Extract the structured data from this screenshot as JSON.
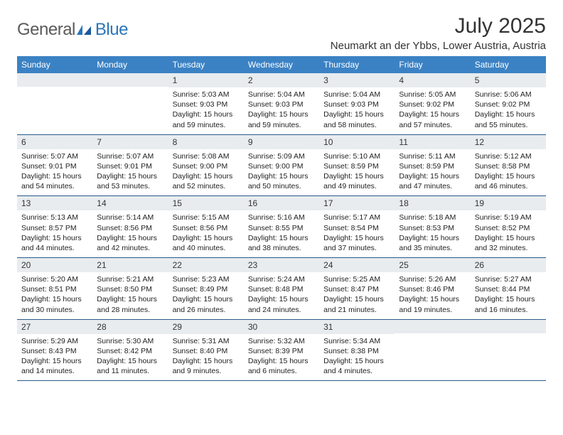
{
  "brand": {
    "text1": "General",
    "text2": "Blue"
  },
  "title": "July 2025",
  "location": "Neumarkt an der Ybbs, Lower Austria, Austria",
  "colors": {
    "header_bg": "#3b82c4",
    "header_text": "#ffffff",
    "daynum_bg": "#e8ecef",
    "week_border": "#2a5a8a",
    "logo_gray": "#5a5a5a",
    "logo_blue": "#2a76b8"
  },
  "typography": {
    "title_fontsize": 30,
    "location_fontsize": 15,
    "dayheader_fontsize": 12,
    "daynum_fontsize": 12,
    "body_fontsize": 10.5
  },
  "day_names": [
    "Sunday",
    "Monday",
    "Tuesday",
    "Wednesday",
    "Thursday",
    "Friday",
    "Saturday"
  ],
  "weeks": [
    [
      {
        "n": "",
        "sunrise": "",
        "sunset": "",
        "daylight": ""
      },
      {
        "n": "",
        "sunrise": "",
        "sunset": "",
        "daylight": ""
      },
      {
        "n": "1",
        "sunrise": "Sunrise: 5:03 AM",
        "sunset": "Sunset: 9:03 PM",
        "daylight": "Daylight: 15 hours and 59 minutes."
      },
      {
        "n": "2",
        "sunrise": "Sunrise: 5:04 AM",
        "sunset": "Sunset: 9:03 PM",
        "daylight": "Daylight: 15 hours and 59 minutes."
      },
      {
        "n": "3",
        "sunrise": "Sunrise: 5:04 AM",
        "sunset": "Sunset: 9:03 PM",
        "daylight": "Daylight: 15 hours and 58 minutes."
      },
      {
        "n": "4",
        "sunrise": "Sunrise: 5:05 AM",
        "sunset": "Sunset: 9:02 PM",
        "daylight": "Daylight: 15 hours and 57 minutes."
      },
      {
        "n": "5",
        "sunrise": "Sunrise: 5:06 AM",
        "sunset": "Sunset: 9:02 PM",
        "daylight": "Daylight: 15 hours and 55 minutes."
      }
    ],
    [
      {
        "n": "6",
        "sunrise": "Sunrise: 5:07 AM",
        "sunset": "Sunset: 9:01 PM",
        "daylight": "Daylight: 15 hours and 54 minutes."
      },
      {
        "n": "7",
        "sunrise": "Sunrise: 5:07 AM",
        "sunset": "Sunset: 9:01 PM",
        "daylight": "Daylight: 15 hours and 53 minutes."
      },
      {
        "n": "8",
        "sunrise": "Sunrise: 5:08 AM",
        "sunset": "Sunset: 9:00 PM",
        "daylight": "Daylight: 15 hours and 52 minutes."
      },
      {
        "n": "9",
        "sunrise": "Sunrise: 5:09 AM",
        "sunset": "Sunset: 9:00 PM",
        "daylight": "Daylight: 15 hours and 50 minutes."
      },
      {
        "n": "10",
        "sunrise": "Sunrise: 5:10 AM",
        "sunset": "Sunset: 8:59 PM",
        "daylight": "Daylight: 15 hours and 49 minutes."
      },
      {
        "n": "11",
        "sunrise": "Sunrise: 5:11 AM",
        "sunset": "Sunset: 8:59 PM",
        "daylight": "Daylight: 15 hours and 47 minutes."
      },
      {
        "n": "12",
        "sunrise": "Sunrise: 5:12 AM",
        "sunset": "Sunset: 8:58 PM",
        "daylight": "Daylight: 15 hours and 46 minutes."
      }
    ],
    [
      {
        "n": "13",
        "sunrise": "Sunrise: 5:13 AM",
        "sunset": "Sunset: 8:57 PM",
        "daylight": "Daylight: 15 hours and 44 minutes."
      },
      {
        "n": "14",
        "sunrise": "Sunrise: 5:14 AM",
        "sunset": "Sunset: 8:56 PM",
        "daylight": "Daylight: 15 hours and 42 minutes."
      },
      {
        "n": "15",
        "sunrise": "Sunrise: 5:15 AM",
        "sunset": "Sunset: 8:56 PM",
        "daylight": "Daylight: 15 hours and 40 minutes."
      },
      {
        "n": "16",
        "sunrise": "Sunrise: 5:16 AM",
        "sunset": "Sunset: 8:55 PM",
        "daylight": "Daylight: 15 hours and 38 minutes."
      },
      {
        "n": "17",
        "sunrise": "Sunrise: 5:17 AM",
        "sunset": "Sunset: 8:54 PM",
        "daylight": "Daylight: 15 hours and 37 minutes."
      },
      {
        "n": "18",
        "sunrise": "Sunrise: 5:18 AM",
        "sunset": "Sunset: 8:53 PM",
        "daylight": "Daylight: 15 hours and 35 minutes."
      },
      {
        "n": "19",
        "sunrise": "Sunrise: 5:19 AM",
        "sunset": "Sunset: 8:52 PM",
        "daylight": "Daylight: 15 hours and 32 minutes."
      }
    ],
    [
      {
        "n": "20",
        "sunrise": "Sunrise: 5:20 AM",
        "sunset": "Sunset: 8:51 PM",
        "daylight": "Daylight: 15 hours and 30 minutes."
      },
      {
        "n": "21",
        "sunrise": "Sunrise: 5:21 AM",
        "sunset": "Sunset: 8:50 PM",
        "daylight": "Daylight: 15 hours and 28 minutes."
      },
      {
        "n": "22",
        "sunrise": "Sunrise: 5:23 AM",
        "sunset": "Sunset: 8:49 PM",
        "daylight": "Daylight: 15 hours and 26 minutes."
      },
      {
        "n": "23",
        "sunrise": "Sunrise: 5:24 AM",
        "sunset": "Sunset: 8:48 PM",
        "daylight": "Daylight: 15 hours and 24 minutes."
      },
      {
        "n": "24",
        "sunrise": "Sunrise: 5:25 AM",
        "sunset": "Sunset: 8:47 PM",
        "daylight": "Daylight: 15 hours and 21 minutes."
      },
      {
        "n": "25",
        "sunrise": "Sunrise: 5:26 AM",
        "sunset": "Sunset: 8:46 PM",
        "daylight": "Daylight: 15 hours and 19 minutes."
      },
      {
        "n": "26",
        "sunrise": "Sunrise: 5:27 AM",
        "sunset": "Sunset: 8:44 PM",
        "daylight": "Daylight: 15 hours and 16 minutes."
      }
    ],
    [
      {
        "n": "27",
        "sunrise": "Sunrise: 5:29 AM",
        "sunset": "Sunset: 8:43 PM",
        "daylight": "Daylight: 15 hours and 14 minutes."
      },
      {
        "n": "28",
        "sunrise": "Sunrise: 5:30 AM",
        "sunset": "Sunset: 8:42 PM",
        "daylight": "Daylight: 15 hours and 11 minutes."
      },
      {
        "n": "29",
        "sunrise": "Sunrise: 5:31 AM",
        "sunset": "Sunset: 8:40 PM",
        "daylight": "Daylight: 15 hours and 9 minutes."
      },
      {
        "n": "30",
        "sunrise": "Sunrise: 5:32 AM",
        "sunset": "Sunset: 8:39 PM",
        "daylight": "Daylight: 15 hours and 6 minutes."
      },
      {
        "n": "31",
        "sunrise": "Sunrise: 5:34 AM",
        "sunset": "Sunset: 8:38 PM",
        "daylight": "Daylight: 15 hours and 4 minutes."
      },
      {
        "n": "",
        "sunrise": "",
        "sunset": "",
        "daylight": ""
      },
      {
        "n": "",
        "sunrise": "",
        "sunset": "",
        "daylight": ""
      }
    ]
  ]
}
